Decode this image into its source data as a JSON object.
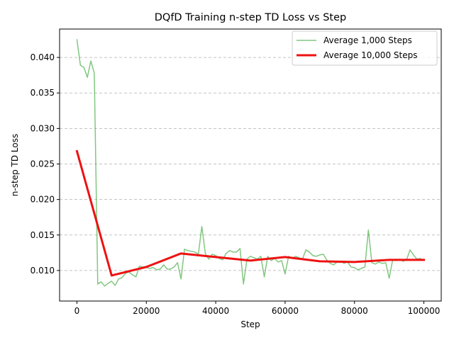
{
  "chart_data": {
    "type": "line",
    "title": "DQfD Training n-step TD Loss vs Step",
    "xlabel": "Step",
    "ylabel": "n-step TD Loss",
    "xlim": [
      -5000,
      105000
    ],
    "ylim": [
      0.0057,
      0.044
    ],
    "xticks": [
      0,
      20000,
      40000,
      60000,
      80000,
      100000
    ],
    "xtick_labels": [
      "0",
      "20000",
      "40000",
      "60000",
      "80000",
      "100000"
    ],
    "yticks": [
      0.01,
      0.015,
      0.02,
      0.025,
      0.03,
      0.035,
      0.04
    ],
    "ytick_labels": [
      "0.010",
      "0.015",
      "0.020",
      "0.025",
      "0.030",
      "0.035",
      "0.040"
    ],
    "grid": "y-dashed",
    "legend_position": "upper right",
    "series": [
      {
        "name": "Average 1,000 Steps",
        "color": "#4daf4a",
        "opacity": 0.7,
        "line_width": 1.5,
        "x": [
          0,
          1000,
          2000,
          3000,
          4000,
          5000,
          6000,
          7000,
          8000,
          9000,
          10000,
          11000,
          12000,
          13000,
          14000,
          15000,
          16000,
          17000,
          18000,
          19000,
          20000,
          21000,
          22000,
          23000,
          24000,
          25000,
          26000,
          27000,
          28000,
          29000,
          30000,
          31000,
          32000,
          33000,
          34000,
          35000,
          36000,
          37000,
          38000,
          39000,
          40000,
          41000,
          42000,
          43000,
          44000,
          45000,
          46000,
          47000,
          48000,
          49000,
          50000,
          51000,
          52000,
          53000,
          54000,
          55000,
          56000,
          57000,
          58000,
          59000,
          60000,
          61000,
          62000,
          63000,
          64000,
          65000,
          66000,
          67000,
          68000,
          69000,
          70000,
          71000,
          72000,
          73000,
          74000,
          75000,
          76000,
          77000,
          78000,
          79000,
          80000,
          81000,
          82000,
          83000,
          84000,
          85000,
          86000,
          87000,
          88000,
          89000,
          90000,
          91000,
          92000,
          93000,
          94000,
          95000,
          96000,
          97000,
          98000,
          99000
        ],
        "y": [
          0.0425,
          0.0389,
          0.0386,
          0.0372,
          0.0395,
          0.0378,
          0.0081,
          0.0084,
          0.0078,
          0.0082,
          0.0085,
          0.0079,
          0.0088,
          0.009,
          0.0096,
          0.0098,
          0.0094,
          0.0091,
          0.0106,
          0.0105,
          0.0104,
          0.0103,
          0.0104,
          0.0101,
          0.0102,
          0.0108,
          0.0102,
          0.0102,
          0.0105,
          0.0111,
          0.0088,
          0.013,
          0.0128,
          0.0127,
          0.0126,
          0.0123,
          0.0162,
          0.0124,
          0.0116,
          0.0123,
          0.0121,
          0.0117,
          0.0115,
          0.0124,
          0.0128,
          0.0126,
          0.0126,
          0.0131,
          0.0081,
          0.0116,
          0.012,
          0.0118,
          0.0116,
          0.012,
          0.0091,
          0.012,
          0.0114,
          0.0117,
          0.0112,
          0.0114,
          0.0095,
          0.012,
          0.0117,
          0.012,
          0.0118,
          0.0116,
          0.0129,
          0.0126,
          0.0121,
          0.012,
          0.0122,
          0.0123,
          0.0115,
          0.011,
          0.0108,
          0.0112,
          0.0113,
          0.011,
          0.0112,
          0.0105,
          0.0104,
          0.0101,
          0.0103,
          0.0105,
          0.0157,
          0.0111,
          0.0109,
          0.0112,
          0.011,
          0.0111,
          0.0089,
          0.0115,
          0.0114,
          0.0116,
          0.0113,
          0.0115,
          0.0129,
          0.0122,
          0.0116,
          0.0117
        ]
      },
      {
        "name": "Average 10,000 Steps",
        "color": "#ee1111",
        "opacity": 1,
        "line_width": 3,
        "x": [
          0,
          10000,
          20000,
          30000,
          40000,
          50000,
          60000,
          70000,
          80000,
          90000,
          100000
        ],
        "y": [
          0.0268,
          0.0093,
          0.0105,
          0.0124,
          0.0119,
          0.0114,
          0.0119,
          0.0113,
          0.0112,
          0.0115,
          0.0115
        ]
      }
    ]
  }
}
